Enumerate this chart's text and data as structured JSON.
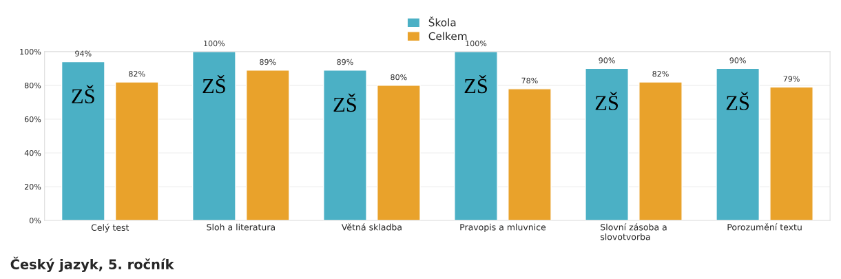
{
  "chart_data": {
    "type": "bar",
    "title": "Český jazyk, 5. ročník",
    "categories": [
      "Celý test",
      "Sloh a literatura",
      "Větná skladba",
      "Pravopis a mluvnice",
      "Slovní zásoba a\nslovotvorba",
      "Porozumění textu"
    ],
    "series": [
      {
        "name": "Škola",
        "color": "#4bb0c5",
        "values": [
          94,
          100,
          89,
          100,
          90,
          90
        ],
        "value_labels": [
          "94%",
          "100%",
          "89%",
          "100%",
          "90%",
          "90%"
        ]
      },
      {
        "name": "Celkem",
        "color": "#e9a22b",
        "values": [
          82,
          89,
          80,
          78,
          82,
          79
        ],
        "value_labels": [
          "82%",
          "89%",
          "80%",
          "78%",
          "82%",
          "79%"
        ]
      }
    ],
    "ylim": [
      0,
      100
    ],
    "yticks": [
      {
        "value": 0,
        "label": "0%"
      },
      {
        "value": 20,
        "label": "20%"
      },
      {
        "value": 40,
        "label": "40%"
      },
      {
        "value": 60,
        "label": "60%"
      },
      {
        "value": 80,
        "label": "80%"
      },
      {
        "value": 100,
        "label": "100%"
      }
    ],
    "annotations": [
      "ZŠ",
      "ZŠ",
      "ZŠ",
      "ZŠ",
      "ZŠ",
      "ZŠ"
    ],
    "grid": "y",
    "legend": "top"
  }
}
